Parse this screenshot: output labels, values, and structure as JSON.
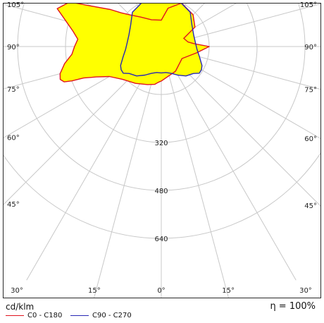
{
  "chart_data": {
    "type": "polar",
    "units": "cd/klm",
    "efficiency": "η = 100%",
    "radial_rings": [
      160,
      320,
      480,
      640
    ],
    "radial_labels": [
      {
        "value": 320,
        "text": "320"
      },
      {
        "value": 480,
        "text": "480"
      },
      {
        "value": 640,
        "text": "640"
      }
    ],
    "angle_labels": [
      {
        "deg": -105,
        "text": "105°"
      },
      {
        "deg": -90,
        "text": "90°"
      },
      {
        "deg": -75,
        "text": "75°"
      },
      {
        "deg": -60,
        "text": "60°"
      },
      {
        "deg": -45,
        "text": "45°"
      },
      {
        "deg": -30,
        "text": "30°"
      },
      {
        "deg": -15,
        "text": "15°"
      },
      {
        "deg": 0,
        "text": "0°"
      },
      {
        "deg": 15,
        "text": "15°"
      },
      {
        "deg": 30,
        "text": "30°"
      },
      {
        "deg": 45,
        "text": "45°"
      },
      {
        "deg": 60,
        "text": "60°"
      },
      {
        "deg": 75,
        "text": "75°"
      },
      {
        "deg": 90,
        "text": "90°"
      },
      {
        "deg": 105,
        "text": "105°"
      }
    ],
    "fill_color": "#ffff00",
    "series": [
      {
        "name": "C0 - C180",
        "color": "#e0141e",
        "points": [
          [
            0,
            115
          ],
          [
            -5,
            120
          ],
          [
            -10,
            128
          ],
          [
            -20,
            135
          ],
          [
            -35,
            150
          ],
          [
            -50,
            170
          ],
          [
            -60,
            200
          ],
          [
            -65,
            240
          ],
          [
            -68,
            280
          ],
          [
            -69,
            320
          ],
          [
            -70,
            345
          ],
          [
            -72,
            355
          ],
          [
            -75,
            350
          ],
          [
            -80,
            328
          ],
          [
            -85,
            300
          ],
          [
            -90,
            290
          ],
          [
            -95,
            280
          ],
          [
            -100,
            300
          ],
          [
            -105,
            330
          ],
          [
            -110,
            370
          ],
          [
            -116,
            340
          ],
          [
            -120,
            270
          ],
          [
            -126,
            210
          ],
          [
            -130,
            175
          ],
          [
            -135,
            150
          ],
          [
            -145,
            120
          ],
          [
            -160,
            95
          ],
          [
            -180,
            88
          ],
          [
            170,
            130
          ],
          [
            155,
            160
          ],
          [
            135,
            150
          ],
          [
            120,
            130
          ],
          [
            110,
            80
          ],
          [
            100,
            90
          ],
          [
            95,
            110
          ],
          [
            90,
            160
          ],
          [
            80,
            120
          ],
          [
            60,
            80
          ],
          [
            30,
            95
          ],
          [
            0,
            115
          ]
        ]
      },
      {
        "name": "C90 - C270",
        "color": "#2828b4",
        "points": [
          [
            0,
            88
          ],
          [
            -10,
            88
          ],
          [
            -20,
            95
          ],
          [
            -30,
            110
          ],
          [
            -40,
            128
          ],
          [
            -50,
            140
          ],
          [
            -55,
            155
          ],
          [
            -60,
            155
          ],
          [
            -65,
            150
          ],
          [
            -70,
            140
          ],
          [
            -75,
            132
          ],
          [
            -85,
            120
          ],
          [
            -95,
            115
          ],
          [
            -110,
            115
          ],
          [
            -125,
            125
          ],
          [
            -140,
            150
          ],
          [
            -160,
            165
          ],
          [
            -180,
            168
          ],
          [
            160,
            165
          ],
          [
            140,
            150
          ],
          [
            125,
            125
          ],
          [
            110,
            115
          ],
          [
            95,
            115
          ],
          [
            85,
            120
          ],
          [
            75,
            132
          ],
          [
            70,
            140
          ],
          [
            65,
            150
          ],
          [
            60,
            155
          ],
          [
            55,
            155
          ],
          [
            50,
            140
          ],
          [
            40,
            128
          ],
          [
            30,
            110
          ],
          [
            20,
            95
          ],
          [
            10,
            88
          ],
          [
            0,
            88
          ]
        ]
      }
    ]
  }
}
